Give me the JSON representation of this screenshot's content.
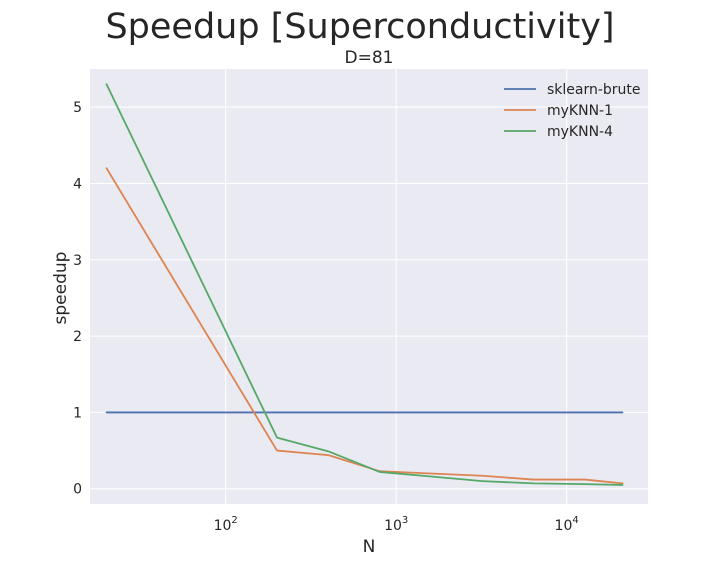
{
  "chart_data": {
    "type": "line",
    "title": "Speedup [Superconductivity]",
    "subtitle": "D=81",
    "xlabel": "N",
    "ylabel": "speedup",
    "xscale": "log",
    "xlim": [
      16,
      30000
    ],
    "ylim": [
      -0.2,
      5.5
    ],
    "xticks": [
      {
        "value": 100,
        "base": "10",
        "exp": "2"
      },
      {
        "value": 1000,
        "base": "10",
        "exp": "3"
      },
      {
        "value": 10000,
        "base": "10",
        "exp": "4"
      }
    ],
    "yticks": [
      0,
      1,
      2,
      3,
      4,
      5
    ],
    "grid": true,
    "legend_position": "top-right",
    "x": [
      20,
      200,
      400,
      800,
      1600,
      3200,
      6400,
      12800,
      21263
    ],
    "series": [
      {
        "name": "sklearn-brute",
        "color": "#4c72b0",
        "values": [
          1,
          1,
          1,
          1,
          1,
          1,
          1,
          1,
          1
        ]
      },
      {
        "name": "myKNN-1",
        "color": "#dd8452",
        "values": [
          4.2,
          0.5,
          0.44,
          0.23,
          0.2,
          0.17,
          0.12,
          0.12,
          0.07
        ]
      },
      {
        "name": "myKNN-4",
        "color": "#55a868",
        "values": [
          5.3,
          0.67,
          0.49,
          0.22,
          0.16,
          0.1,
          0.07,
          0.06,
          0.05
        ]
      }
    ]
  }
}
